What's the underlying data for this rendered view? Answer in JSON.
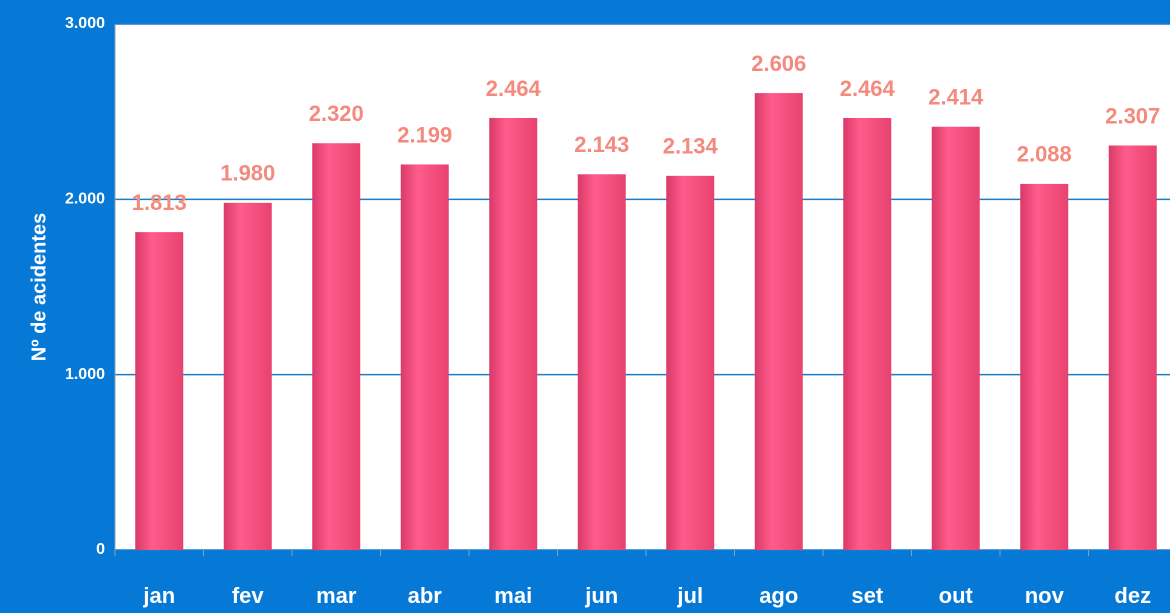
{
  "chart_data": {
    "type": "bar",
    "y_axis_label": "Nº de acidentes",
    "categories": [
      "jan",
      "fev",
      "mar",
      "abr",
      "mai",
      "jun",
      "jul",
      "ago",
      "set",
      "out",
      "nov",
      "dez"
    ],
    "values": [
      1813,
      1980,
      2320,
      2199,
      2464,
      2143,
      2134,
      2606,
      2464,
      2414,
      2088,
      2307
    ],
    "value_labels": [
      "1.813",
      "1.980",
      "2.320",
      "2.199",
      "2.464",
      "2.143",
      "2.134",
      "2.606",
      "2.464",
      "2.414",
      "2.088",
      "2.307"
    ],
    "color": "#f24b7e",
    "ylim": [
      0,
      3000
    ],
    "yticks": [
      0,
      {
        "value": 1000,
        "label": "1.000"
      },
      {
        "value": 2000,
        "label": "2.000"
      },
      {
        "value": 3000,
        "label": "3.000"
      }
    ],
    "grid": true
  }
}
